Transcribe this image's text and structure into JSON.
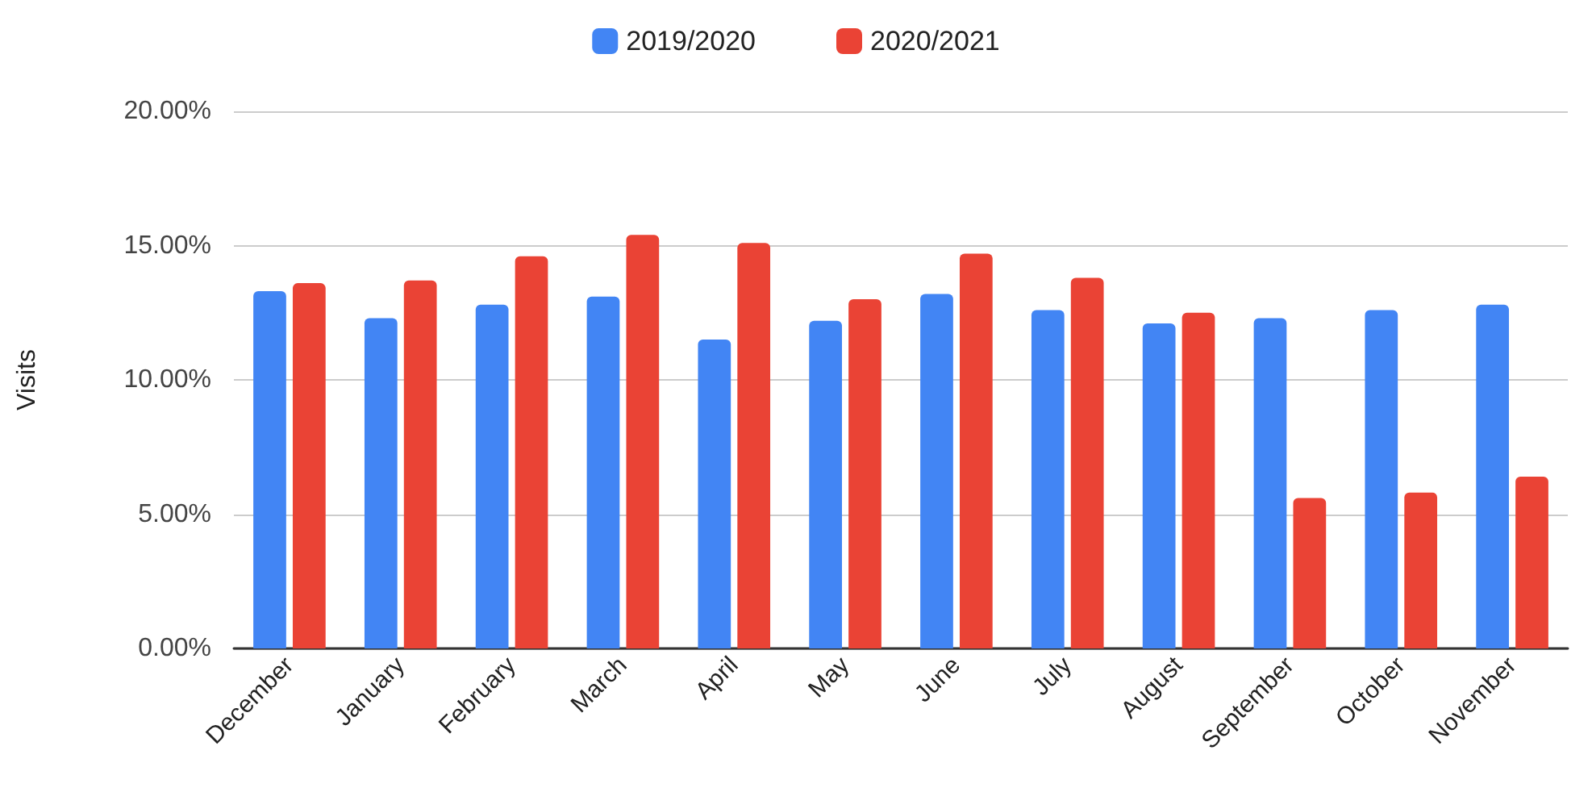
{
  "chart_data": {
    "type": "bar",
    "ylabel": "Visits",
    "categories": [
      "December",
      "January",
      "February",
      "March",
      "April",
      "May",
      "June",
      "July",
      "August",
      "September",
      "October",
      "November"
    ],
    "series": [
      {
        "name": "2019/2020",
        "color": "#4285f4",
        "values": [
          13.3,
          12.3,
          12.8,
          13.1,
          11.5,
          12.2,
          13.2,
          12.6,
          12.1,
          12.3,
          12.6,
          12.8
        ]
      },
      {
        "name": "2020/2021",
        "color": "#ea4335",
        "values": [
          13.6,
          13.7,
          14.6,
          15.4,
          15.1,
          13.0,
          14.7,
          13.8,
          12.5,
          5.6,
          5.8,
          6.4
        ]
      }
    ],
    "ylim": [
      0,
      20
    ],
    "yticks": [
      {
        "value": 0,
        "label": "0.00%"
      },
      {
        "value": 5,
        "label": "5.00%"
      },
      {
        "value": 10,
        "label": "10.00%"
      },
      {
        "value": 15,
        "label": "15.00%"
      },
      {
        "value": 20,
        "label": "20.00%"
      }
    ],
    "grid": "y",
    "legend": "top"
  }
}
